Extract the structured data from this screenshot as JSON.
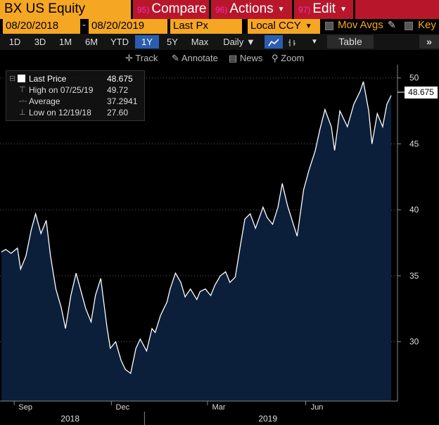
{
  "header": {
    "ticker": "BX US Equity",
    "buttons": [
      {
        "num": "95)",
        "label": "Compare",
        "caret": false
      },
      {
        "num": "96)",
        "label": "Actions",
        "caret": true
      },
      {
        "num": "97)",
        "label": "Edit",
        "caret": true
      }
    ]
  },
  "controls": {
    "start_date": "08/20/2018",
    "end_date": "08/20/2019",
    "field": "Last Px",
    "currency": "Local CCY",
    "mov_avgs": "Mov Avgs",
    "key": "Key",
    "ranges": [
      "1D",
      "3D",
      "1M",
      "6M",
      "YTD",
      "1Y",
      "5Y",
      "Max"
    ],
    "active_range": "1Y",
    "frequency": "Daily",
    "table": "Table"
  },
  "tools": {
    "track": "Track",
    "annotate": "Annotate",
    "news": "News",
    "zoom": "Zoom"
  },
  "legend": {
    "last_label": "Last Price",
    "last_value": "48.675",
    "high_label": "High on 07/25/19",
    "high_value": "49.72",
    "avg_label": "Average",
    "avg_value": "37.2941",
    "low_label": "Low on 12/19/18",
    "low_value": "27.60"
  },
  "colors": {
    "area_fill": "#0b1f3a",
    "line": "#ffffff",
    "orange": "#f5a623",
    "red": "#b8172b",
    "active": "#2a5db0"
  },
  "chart_data": {
    "type": "area",
    "title": "BX US Equity",
    "ylabel": "",
    "ylim": [
      25.5,
      51
    ],
    "yticks": [
      30,
      35,
      40,
      45,
      50
    ],
    "grid": true,
    "x_month_labels": [
      "Sep",
      "Dec",
      "Mar",
      "Jun"
    ],
    "x_year_labels": [
      "2018",
      "2019"
    ],
    "last_price_tag": "48.675",
    "series": [
      {
        "name": "Last Price",
        "x": [
          "2018-08-20",
          "2018-08-24",
          "2018-08-29",
          "2018-09-04",
          "2018-09-07",
          "2018-09-12",
          "2018-09-17",
          "2018-09-21",
          "2018-09-26",
          "2018-10-01",
          "2018-10-05",
          "2018-10-10",
          "2018-10-15",
          "2018-10-19",
          "2018-10-24",
          "2018-10-29",
          "2018-11-02",
          "2018-11-07",
          "2018-11-12",
          "2018-11-16",
          "2018-11-21",
          "2018-11-27",
          "2018-11-30",
          "2018-12-05",
          "2018-12-10",
          "2018-12-14",
          "2018-12-19",
          "2018-12-24",
          "2018-12-28",
          "2019-01-03",
          "2019-01-08",
          "2019-01-11",
          "2019-01-16",
          "2019-01-22",
          "2019-01-25",
          "2019-01-30",
          "2019-02-04",
          "2019-02-08",
          "2019-02-13",
          "2019-02-19",
          "2019-02-22",
          "2019-02-27",
          "2019-03-04",
          "2019-03-08",
          "2019-03-13",
          "2019-03-18",
          "2019-03-22",
          "2019-03-27",
          "2019-04-01",
          "2019-04-05",
          "2019-04-10",
          "2019-04-15",
          "2019-04-22",
          "2019-04-26",
          "2019-05-01",
          "2019-05-06",
          "2019-05-10",
          "2019-05-15",
          "2019-05-20",
          "2019-05-24",
          "2019-05-30",
          "2019-06-04",
          "2019-06-10",
          "2019-06-14",
          "2019-06-19",
          "2019-06-25",
          "2019-06-28",
          "2019-07-03",
          "2019-07-10",
          "2019-07-16",
          "2019-07-22",
          "2019-07-25",
          "2019-07-30",
          "2019-08-02",
          "2019-08-07",
          "2019-08-12",
          "2019-08-16",
          "2019-08-20"
        ],
        "values": [
          36.8,
          37.0,
          36.7,
          37.1,
          35.5,
          36.5,
          38.5,
          39.7,
          38.2,
          39.2,
          36.5,
          34.0,
          32.6,
          31.0,
          33.5,
          35.2,
          34.0,
          32.5,
          31.5,
          33.5,
          34.8,
          31.0,
          29.5,
          30.0,
          28.6,
          27.9,
          27.6,
          29.5,
          30.2,
          29.3,
          31.0,
          30.7,
          32.0,
          33.0,
          34.0,
          35.2,
          34.5,
          33.4,
          34.0,
          33.2,
          33.8,
          34.0,
          33.5,
          34.3,
          35.0,
          35.3,
          34.5,
          34.9,
          37.4,
          39.3,
          39.7,
          38.6,
          40.2,
          39.4,
          38.9,
          40.2,
          42.0,
          40.3,
          39.0,
          38.0,
          41.5,
          43.0,
          44.5,
          46.0,
          47.6,
          46.3,
          44.5,
          47.5,
          46.3,
          48.0,
          49.0,
          49.72,
          47.5,
          45.0,
          47.3,
          46.3,
          48.0,
          48.675
        ]
      }
    ]
  }
}
